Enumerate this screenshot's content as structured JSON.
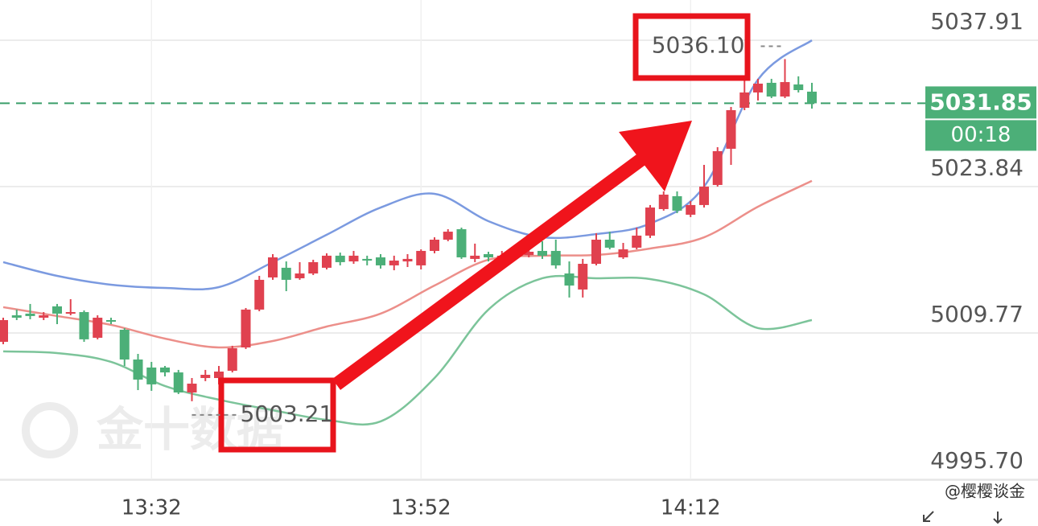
{
  "chart_data": {
    "type": "candlestick",
    "categories": [
      null,
      null,
      null,
      null,
      null,
      null,
      null,
      null,
      null,
      null,
      null,
      "13:32",
      null,
      null,
      null,
      null,
      null,
      null,
      null,
      null,
      null,
      null,
      null,
      null,
      null,
      null,
      null,
      null,
      null,
      null,
      null,
      "13:52",
      null,
      null,
      null,
      null,
      null,
      null,
      null,
      null,
      null,
      null,
      null,
      null,
      null,
      null,
      null,
      null,
      null,
      null,
      null,
      "14:12",
      null,
      null,
      null,
      null,
      null,
      null,
      null,
      null,
      null
    ],
    "open": [
      5008.92,
      5011.47,
      5011.63,
      5011.24,
      5012.33,
      5011.63,
      5011.78,
      5009.31,
      5011.01,
      5010.08,
      5007.22,
      5006.45,
      5006.45,
      5005.98,
      5004.05,
      5005.44,
      5005.44,
      5006.14,
      5008.38,
      5012.02,
      5015.11,
      5016.04,
      5015.03,
      5015.49,
      5016.04,
      5017.2,
      5016.65,
      5016.89,
      5017.04,
      5016.27,
      5016.65,
      5016.27,
      5017.66,
      5018.74,
      5019.75,
      5016.89,
      5017.35,
      5016.89,
      5017.2,
      5017.27,
      5017.66,
      5017.66,
      5015.49,
      5013.95,
      5016.42,
      5018.74,
      5017.04,
      5017.97,
      5019.13,
      5021.68,
      5022.92,
      5021.14,
      5022.07,
      5024.0,
      5027.48,
      5031.42,
      5032.89,
      5033.82,
      5032.5,
      5033.66,
      5032.97
    ],
    "high": [
      5011.24,
      5012.02,
      5012.56,
      5011.78,
      5012.56,
      5013.02,
      5011.94,
      5011.47,
      5011.24,
      5010.24,
      5007.76,
      5006.99,
      5006.6,
      5006.22,
      5005.44,
      5006.22,
      5006.6,
      5008.54,
      5012.17,
      5015.26,
      5017.35,
      5016.65,
      5016.58,
      5016.81,
      5017.43,
      5017.5,
      5017.66,
      5017.2,
      5017.35,
      5017.2,
      5017.35,
      5017.81,
      5018.97,
      5019.75,
      5019.9,
      5018.36,
      5017.58,
      5017.66,
      5018.28,
      5018.2,
      5018.59,
      5018.74,
      5016.65,
      5016.89,
      5019.36,
      5019.51,
      5018.43,
      5019.9,
      5022.07,
      5023.38,
      5023.38,
      5022.45,
      5025.93,
      5027.63,
      5031.5,
      5034.2,
      5034.2,
      5034.2,
      5036.1,
      5034.44,
      5033.82
    ],
    "low": [
      5008.69,
      5011.01,
      5011.09,
      5011.01,
      5010.62,
      5011.47,
      5008.92,
      5009.16,
      5010.62,
      5006.6,
      5004.28,
      5004.21,
      5005.6,
      5003.9,
      5003.21,
      5005.14,
      5004.83,
      5005.98,
      5008.23,
      5011.86,
      5014.88,
      5013.79,
      5014.88,
      5015.34,
      5015.88,
      5016.27,
      5016.42,
      5016.27,
      5015.96,
      5015.8,
      5016.11,
      5015.88,
      5017.43,
      5018.59,
      5016.89,
      5016.58,
      5016.65,
      5016.42,
      5017.04,
      5017.04,
      5016.89,
      5015.96,
      5013.18,
      5013.18,
      5016.27,
      5017.81,
      5016.89,
      5017.81,
      5018.9,
      5021.53,
      5021.29,
      5020.91,
      5021.83,
      5023.84,
      5025.93,
      5031.19,
      5032.12,
      5032.35,
      5032.35,
      5032.89,
      5031.34
    ],
    "close": [
      5011.01,
      5011.24,
      5011.4,
      5011.47,
      5011.63,
      5011.78,
      5009.16,
      5011.24,
      5010.86,
      5007.22,
      5005.29,
      5004.83,
      5005.98,
      5004.05,
      5004.9,
      5005.75,
      5006.06,
      5008.3,
      5012.02,
      5014.88,
      5017.04,
      5014.88,
      5015.49,
      5016.58,
      5017.2,
      5016.58,
      5017.2,
      5016.73,
      5016.27,
      5016.73,
      5016.89,
      5017.66,
      5018.74,
      5019.51,
      5017.04,
      5017.2,
      5017.04,
      5017.2,
      5017.81,
      5017.58,
      5017.2,
      5016.27,
      5014.33,
      5016.42,
      5018.74,
      5017.97,
      5017.81,
      5019.13,
      5021.83,
      5023.07,
      5021.53,
      5022.07,
      5023.84,
      5027.25,
      5031.19,
      5032.89,
      5033.74,
      5032.5,
      5033.89,
      5033.12,
      5031.85
    ],
    "up_color": "#e0414f",
    "down_color": "#4caf78",
    "bands": [
      {
        "color": "#7b9ae0",
        "x": [
          0,
          4,
          8,
          12,
          16,
          20,
          24,
          28,
          32,
          36,
          40,
          44,
          48,
          52,
          56,
          60
        ],
        "values": [
          5016.58,
          5015.26,
          5014.41,
          5014.1,
          5014.18,
          5016.58,
          5019.21,
          5021.83,
          5023.15,
          5020.52,
          5018.97,
          5019.28,
          5020.29,
          5023.84,
          5034.13,
          5037.91
        ]
      },
      {
        "color": "#ec8f8a",
        "x": [
          0,
          4,
          8,
          12,
          16,
          20,
          24,
          28,
          32,
          36,
          40,
          44,
          48,
          52,
          56,
          60
        ],
        "values": [
          5012.25,
          5011.4,
          5010.55,
          5009.23,
          5008.38,
          5009.0,
          5010.39,
          5011.63,
          5014.33,
          5016.81,
          5017.2,
          5017.27,
          5017.89,
          5018.97,
          5021.91,
          5024.39
        ]
      },
      {
        "color": "#7cc49a",
        "x": [
          0,
          4,
          8,
          12,
          16,
          20,
          24,
          28,
          32,
          36,
          40,
          44,
          48,
          52,
          56,
          60
        ],
        "values": [
          5008.0,
          5007.84,
          5006.99,
          5004.67,
          5003.36,
          5002.35,
          5001.42,
          5001.27,
          5005.44,
          5012.02,
          5015.03,
          5015.03,
          5014.95,
          5013.48,
          5010.24,
          5011.01
        ]
      }
    ],
    "ylim": [
      4995.7,
      5041.78
    ],
    "yticks": [
      {
        "value": 4995.7,
        "label": "4995.70"
      },
      5009.77,
      5023.84,
      5037.91
    ],
    "grid": true,
    "last_price": 5031.85,
    "countdown": "00:18",
    "annotations": [
      {
        "value": 5036.1,
        "label": "5036.10"
      },
      5003.21
    ],
    "watermark": "金十数据",
    "credit": "@樱樱谈金"
  }
}
